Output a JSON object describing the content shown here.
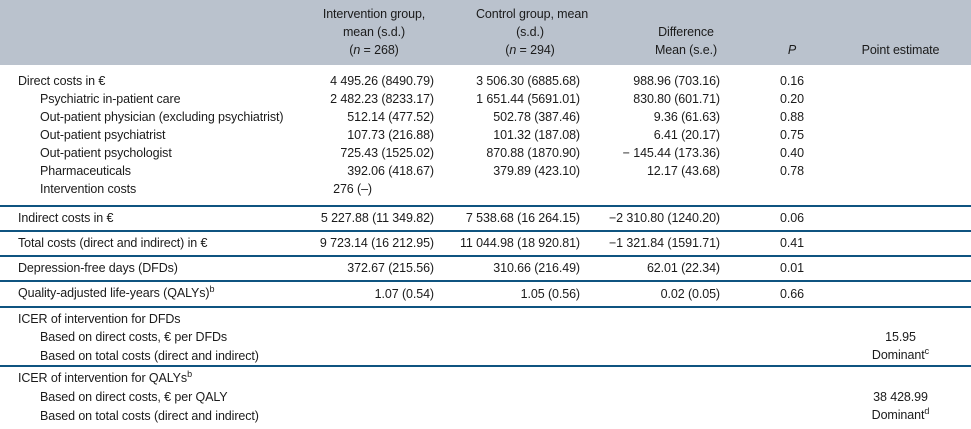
{
  "colors": {
    "header_bg": "#bac2cd",
    "rule": "#0f5480",
    "text": "#1b1b1b"
  },
  "header": {
    "intervention": {
      "line1": "Intervention group,",
      "line2": "mean (s.d.)",
      "n_pre": "(",
      "n": "n",
      "n_post": " = 268)"
    },
    "control": {
      "line1": "Control group, mean",
      "line2": "(s.d.)",
      "n_pre": "(",
      "n": "n",
      "n_post": " = 294)"
    },
    "difference": {
      "line1": "Difference",
      "line2": "Mean (s.e.)"
    },
    "p": "P",
    "point_estimate": "Point estimate"
  },
  "rows": [
    {
      "label": "Direct costs in €",
      "intervention": "4 495.26 (8490.79)",
      "control": "3 506.30 (6885.68)",
      "difference": "988.96 (703.16)",
      "p": "0.16"
    },
    {
      "label": "Psychiatric in-patient care",
      "intervention": "2 482.23 (8233.17)",
      "control": "1 651.44 (5691.01)",
      "difference": "830.80 (601.71)",
      "p": "0.20"
    },
    {
      "label": "Out-patient physician (excluding psychiatrist)",
      "intervention": "512.14 (477.52)",
      "control": "502.78 (387.46)",
      "difference": "9.36 (61.63)",
      "p": "0.88"
    },
    {
      "label": "Out-patient psychiatrist",
      "intervention": "107.73 (216.88)",
      "control": "101.32 (187.08)",
      "difference": "6.41 (20.17)",
      "p": "0.75"
    },
    {
      "label": "Out-patient psychologist",
      "intervention": "725.43 (1525.02)",
      "control": "870.88 (1870.90)",
      "difference": "− 145.44 (173.36)",
      "p": "0.40"
    },
    {
      "label": "Pharmaceuticals",
      "intervention": "392.06 (418.67)",
      "control": "379.89 (423.10)",
      "difference": "12.17 (43.68)",
      "p": "0.78"
    },
    {
      "label": "Intervention costs",
      "intervention": "276 (–)"
    },
    {
      "label": "Indirect costs in €",
      "intervention": "5 227.88 (11 349.82)",
      "control": "7 538.68 (16 264.15)",
      "difference": "−2 310.80 (1240.20)",
      "p": "0.06"
    },
    {
      "label": "Total costs (direct and indirect) in €",
      "intervention": "9 723.14 (16 212.95)",
      "control": "11 044.98 (18 920.81)",
      "difference": "−1 321.84 (1591.71)",
      "p": "0.41"
    },
    {
      "label": "Depression-free days (DFDs)",
      "intervention": "372.67 (215.56)",
      "control": "310.66 (216.49)",
      "difference": "62.01 (22.34)",
      "p": "0.01"
    },
    {
      "label": "Quality-adjusted life-years (QALYs)",
      "sup": "b",
      "intervention": "1.07 (0.54)",
      "control": "1.05 (0.56)",
      "difference": "0.02 (0.05)",
      "p": "0.66"
    },
    {
      "label": "ICER of intervention for DFDs"
    },
    {
      "label": "Based on direct costs, € per DFDs",
      "point": "15.95"
    },
    {
      "label": "Based on total costs (direct and indirect)",
      "point": "Dominant",
      "point_sup": "c"
    },
    {
      "label": "ICER of intervention for QALYs",
      "sup": "b"
    },
    {
      "label": "Based on direct costs, € per QALY",
      "point": "38 428.99"
    },
    {
      "label": "Based on total costs (direct and indirect)",
      "point": "Dominant",
      "point_sup": "d"
    }
  ]
}
